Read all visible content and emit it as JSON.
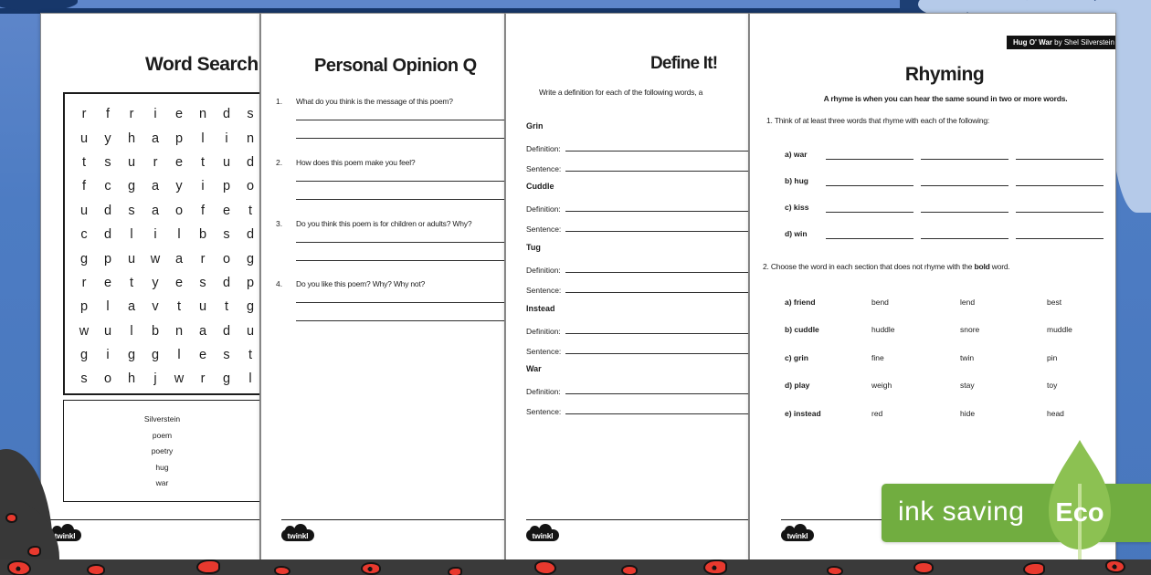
{
  "source_badge": {
    "title": "Hug O' War",
    "byline": " by Shel Silverstein"
  },
  "word_search": {
    "title": "Word Search",
    "grid_rows": [
      "rfriends",
      "uyhaplin",
      "tsuretud",
      "fcgayipo",
      "udsaofet",
      "cdlilbsd",
      "gpuwarog",
      "retyesdp",
      "plavtutg",
      "wulbnadu",
      "gigglest",
      "sohjwrgl"
    ],
    "words": [
      "Silverstein",
      "poem",
      "poetry",
      "hug",
      "war"
    ]
  },
  "opinion": {
    "title": "Personal Opinion Q",
    "questions": [
      {
        "num": "1.",
        "text": "What do you think is the message of this poem?"
      },
      {
        "num": "2.",
        "text": "How does this poem make you feel?"
      },
      {
        "num": "3.",
        "text": "Do you think this poem is for children or adults? Why?"
      },
      {
        "num": "4.",
        "text": "Do you like this poem? Why? Why not?"
      }
    ]
  },
  "define_it": {
    "title": "Define It!",
    "instruction": "Write a definition for each of the following words, a",
    "definition_label": "Definition:",
    "sentence_label": "Sentence:",
    "words": [
      "Grin",
      "Cuddle",
      "Tug",
      "Instead",
      "War"
    ]
  },
  "rhyming": {
    "title": "Rhyming",
    "subtitle": "A rhyme is when you can hear the same sound in two or more words.",
    "task1": "1. Think of at least three words that rhyme with each of the following:",
    "task1_items": [
      "a) war",
      "b) hug",
      "c) kiss",
      "d) win"
    ],
    "task2_prefix": "2. Choose the word in each section that does not rhyme with the ",
    "task2_bold": "bold",
    "task2_suffix": " word.",
    "task2_rows": [
      {
        "label": "a) friend",
        "options": [
          "bend",
          "lend",
          "best"
        ]
      },
      {
        "label": "b) cuddle",
        "options": [
          "huddle",
          "snore",
          "muddle"
        ]
      },
      {
        "label": "c) grin",
        "options": [
          "fine",
          "twin",
          "pin"
        ]
      },
      {
        "label": "d) play",
        "options": [
          "weigh",
          "stay",
          "toy"
        ]
      },
      {
        "label": "e) instead",
        "options": [
          "red",
          "hide",
          "head"
        ]
      }
    ]
  },
  "eco_badge": {
    "label": "ink saving",
    "eco": "Eco"
  },
  "twinkl_label": "twinkl",
  "colors": {
    "background_blue": "#4d7cc3",
    "cloud_light": "#b5cae9",
    "navy": "#17376a",
    "strip_dark": "#3a3a3a",
    "poppy_red": "#e8392e",
    "ribbon_green": "#71ad40",
    "leaf_green": "#8cc152",
    "page_white": "#ffffff"
  }
}
